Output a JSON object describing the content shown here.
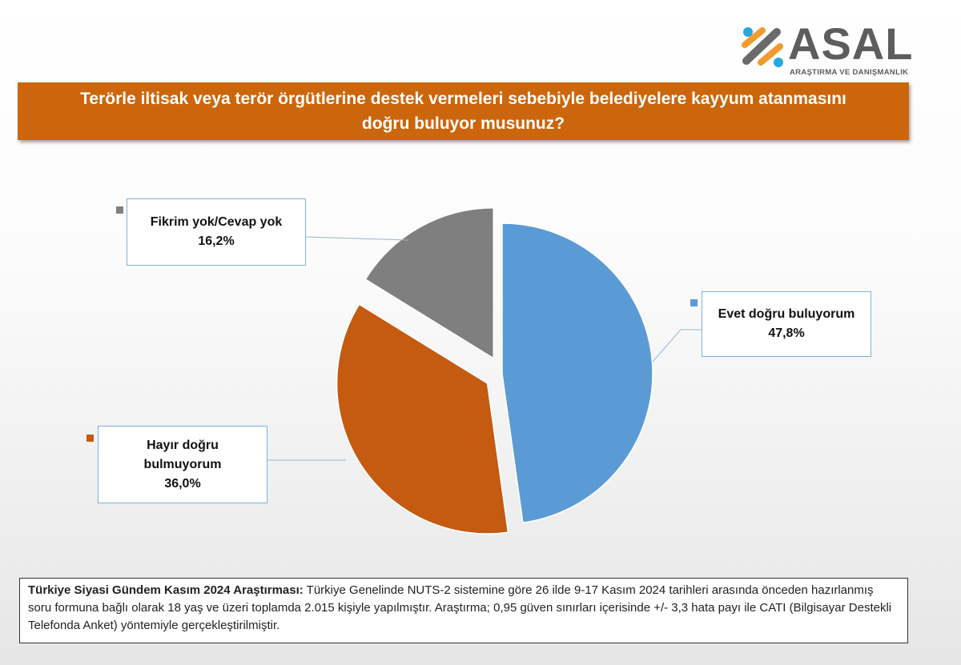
{
  "logo": {
    "name": "ASAL",
    "subtitle": "ARAŞTIRMA VE DANIŞMANLIK"
  },
  "chart_data": {
    "type": "pie",
    "title": "Terörle iltisak veya terör örgütlerine destek vermeleri sebebiyle belediyelere kayyum atanmasını doğru buluyor musunuz?",
    "slices": [
      {
        "label": "Evet doğru buluyorum",
        "value": 47.8,
        "display": "47,8%",
        "color": "#5b9bd5"
      },
      {
        "label": "Hayır doğru bulmuyorum",
        "value": 36.0,
        "display": "36,0%",
        "color": "#c55a11"
      },
      {
        "label": "Fikrim yok/Cevap yok",
        "value": 16.2,
        "display": "16,2%",
        "color": "#7f7f7f"
      }
    ]
  },
  "footer": {
    "bold": "Türkiye Siyasi Gündem Kasım 2024 Araştırması:",
    "text": " Türkiye Genelinde NUTS-2 sistemine göre 26 ilde 9-17 Kasım 2024 tarihleri arasında önceden hazırlanmış soru formuna bağlı olarak 18 yaş ve üzeri toplamda 2.015 kişiyle yapılmıştır. Araştırma; 0,95 güven sınırları içerisinde +/- 3,3 hata payı ile CATI (Bilgisayar Destekli Telefonda Anket) yöntemiyle gerçekleştirilmiştir."
  }
}
